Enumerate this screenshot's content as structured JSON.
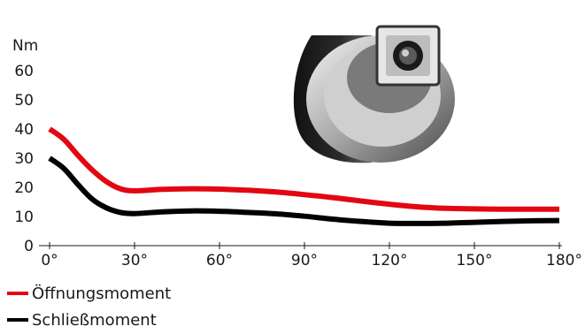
{
  "chart_data": {
    "type": "line",
    "ylabel": "Nm",
    "ylim": [
      0,
      60
    ],
    "y_ticks": [
      "0",
      "10",
      "20",
      "30",
      "40",
      "50",
      "60"
    ],
    "xlim": [
      0,
      180
    ],
    "x_ticks": [
      "0°",
      "30°",
      "60°",
      "90°",
      "120°",
      "150°",
      "180°"
    ],
    "grid": false,
    "legend_position": "bottom-left",
    "x": [
      0,
      5,
      10,
      15,
      20,
      25,
      30,
      40,
      50,
      60,
      70,
      80,
      90,
      100,
      110,
      120,
      130,
      140,
      150,
      160,
      170,
      180
    ],
    "series": [
      {
        "name": "Öffnungsmoment",
        "color": "#e30613",
        "values": [
          40,
          36.5,
          31,
          26,
          22,
          19.5,
          18.8,
          19.3,
          19.5,
          19.4,
          19,
          18.4,
          17.5,
          16.5,
          15.3,
          14.2,
          13.3,
          12.8,
          12.6,
          12.5,
          12.5,
          12.5
        ]
      },
      {
        "name": "Schließmoment",
        "color": "#000000",
        "values": [
          30,
          26.5,
          21,
          16,
          13,
          11.4,
          11.0,
          11.6,
          11.9,
          11.8,
          11.4,
          10.9,
          10.1,
          9.1,
          8.3,
          7.7,
          7.6,
          7.7,
          8.0,
          8.3,
          8.5,
          8.6
        ]
      }
    ]
  }
}
